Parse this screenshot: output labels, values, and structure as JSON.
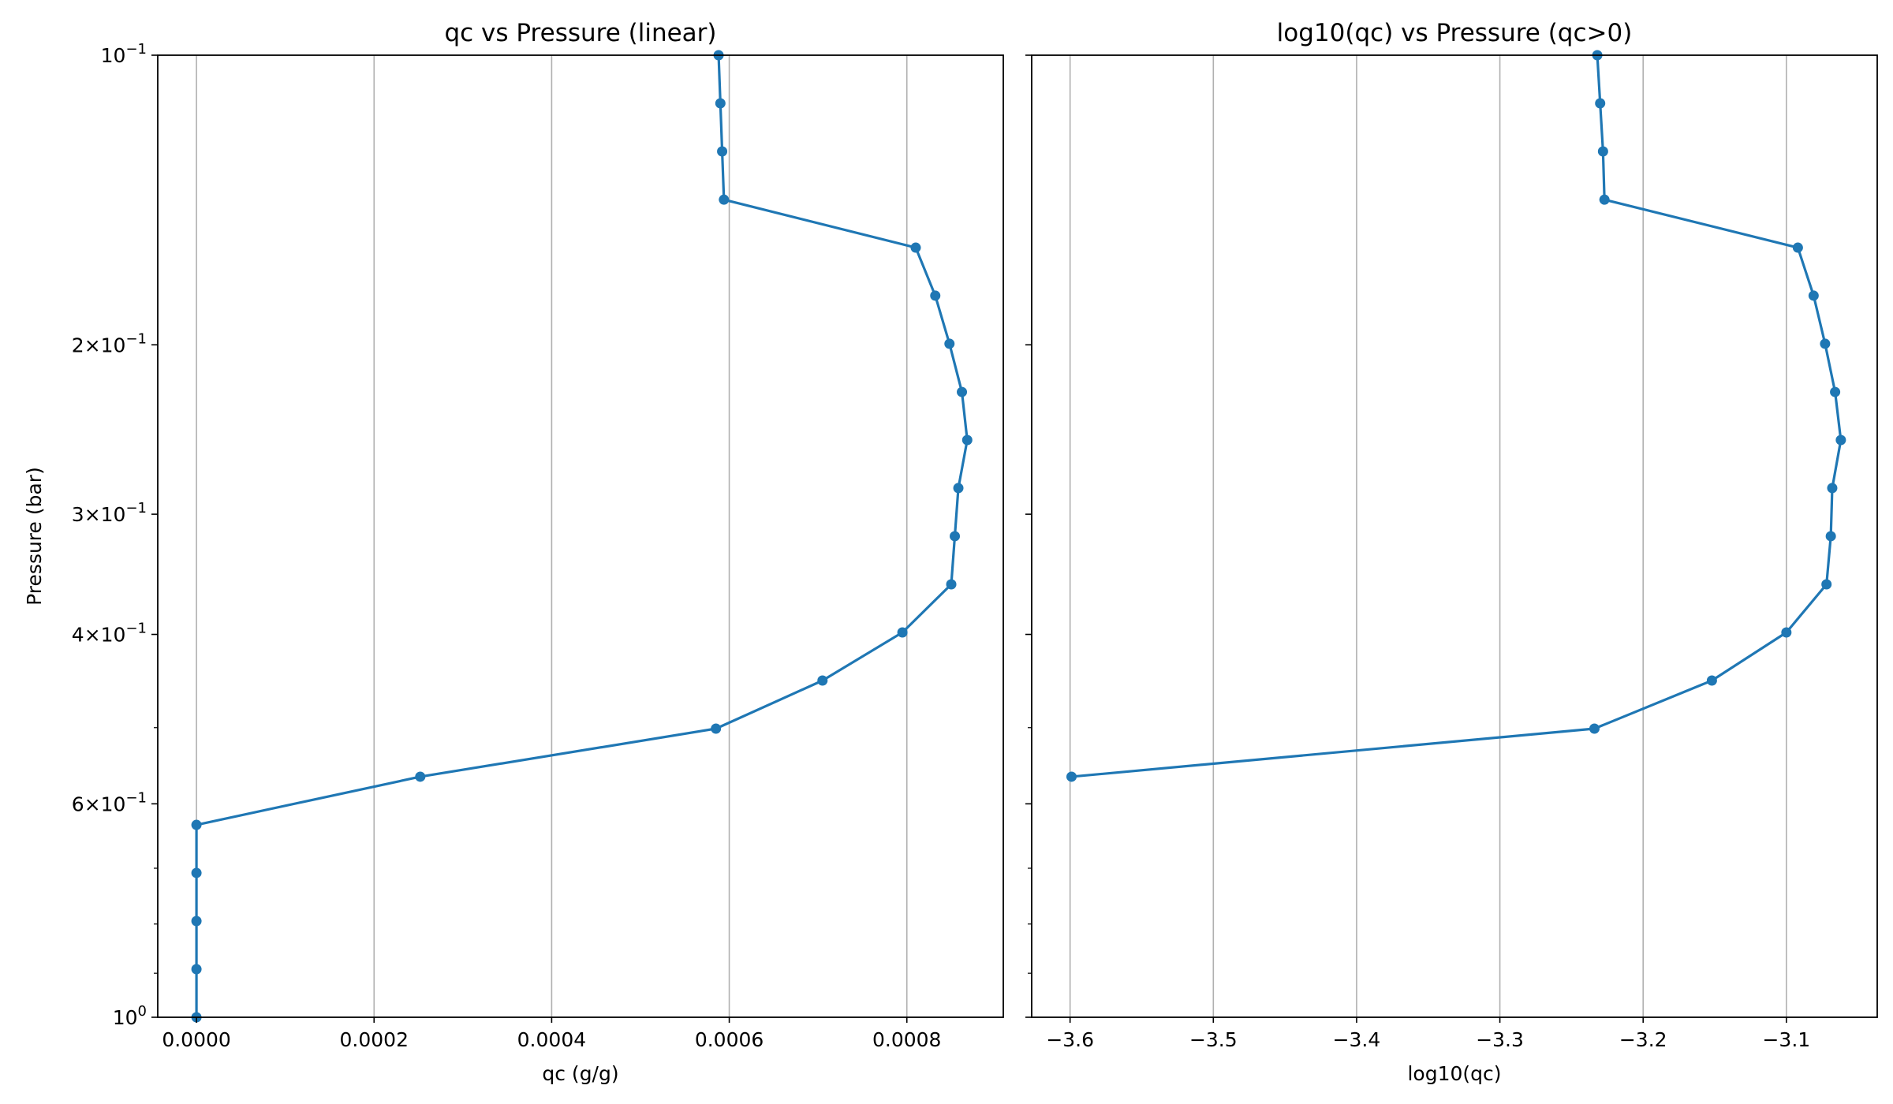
{
  "figure": {
    "ylabel": "Pressure (bar)",
    "y_axis_scale": "log",
    "y_axis_inverted": true,
    "ylim": [
      1.0,
      0.1
    ],
    "y_tick_labels": [
      {
        "value": 0.1,
        "base": "10",
        "exp": "−1",
        "style": "pow"
      },
      {
        "value": 0.2,
        "mant": "2",
        "base": "10",
        "exp": "−1",
        "style": "mult"
      },
      {
        "value": 0.3,
        "mant": "3",
        "base": "10",
        "exp": "−1",
        "style": "mult"
      },
      {
        "value": 0.4,
        "mant": "4",
        "base": "10",
        "exp": "−1",
        "style": "mult"
      },
      {
        "value": 0.6,
        "mant": "6",
        "base": "10",
        "exp": "−1",
        "style": "mult"
      },
      {
        "value": 1.0,
        "base": "10",
        "exp": "0",
        "style": "pow"
      }
    ],
    "y_minor_ticks": [
      0.5,
      0.7,
      0.8,
      0.9
    ],
    "line_color": "#1f77b4",
    "grid_color": "#b0b0b0"
  },
  "chart_data": [
    {
      "type": "line",
      "title": "qc vs Pressure (linear)",
      "xlabel": "qc (g/g)",
      "ylabel": "Pressure (bar)",
      "xlim": [
        -4.36e-05,
        0.0009086
      ],
      "x_ticks": [
        {
          "value": 0,
          "label": "0.0000"
        },
        {
          "value": 0.0002,
          "label": "0.0002"
        },
        {
          "value": 0.0004,
          "label": "0.0004"
        },
        {
          "value": 0.0006,
          "label": "0.0006"
        },
        {
          "value": 0.0008,
          "label": "0.0008"
        }
      ],
      "grid": "x",
      "series": [
        {
          "pressure": [
            0.1,
            0.1122,
            0.1259,
            0.1413,
            0.1585,
            0.1778,
            0.1995,
            0.2239,
            0.2512,
            0.2818,
            0.3162,
            0.3548,
            0.3981,
            0.4467,
            0.5012,
            0.5623,
            0.631,
            0.7079,
            0.7943,
            0.8913,
            1.0
          ],
          "qc": [
            0.000588,
            0.00059,
            0.000592,
            0.000594,
            0.00081,
            0.000832,
            0.000848,
            0.000862,
            0.000868,
            0.000858,
            0.000854,
            0.00085,
            0.000795,
            0.000705,
            0.000585,
            0.000252,
            0.0,
            0.0,
            0.0,
            0.0,
            0.0
          ]
        }
      ]
    },
    {
      "type": "line",
      "title": "log10(qc) vs Pressure (qc>0)",
      "xlabel": "log10(qc)",
      "ylabel": "Pressure (bar)",
      "xlim": [
        -3.6268,
        -3.0366
      ],
      "x_ticks": [
        {
          "value": -3.6,
          "label": "−3.6"
        },
        {
          "value": -3.5,
          "label": "−3.5"
        },
        {
          "value": -3.4,
          "label": "−3.4"
        },
        {
          "value": -3.3,
          "label": "−3.3"
        },
        {
          "value": -3.2,
          "label": "−3.2"
        },
        {
          "value": -3.1,
          "label": "−3.1"
        }
      ],
      "grid": "x",
      "series": [
        {
          "pressure": [
            0.1,
            0.1122,
            0.1259,
            0.1413,
            0.1585,
            0.1778,
            0.1995,
            0.2239,
            0.2512,
            0.2818,
            0.3162,
            0.3548,
            0.3981,
            0.4467,
            0.5012,
            0.5623
          ],
          "log10_qc": [
            -3.232,
            -3.23,
            -3.228,
            -3.227,
            -3.092,
            -3.081,
            -3.073,
            -3.066,
            -3.062,
            -3.068,
            -3.069,
            -3.072,
            -3.1,
            -3.152,
            -3.234,
            -3.599
          ]
        }
      ]
    }
  ]
}
